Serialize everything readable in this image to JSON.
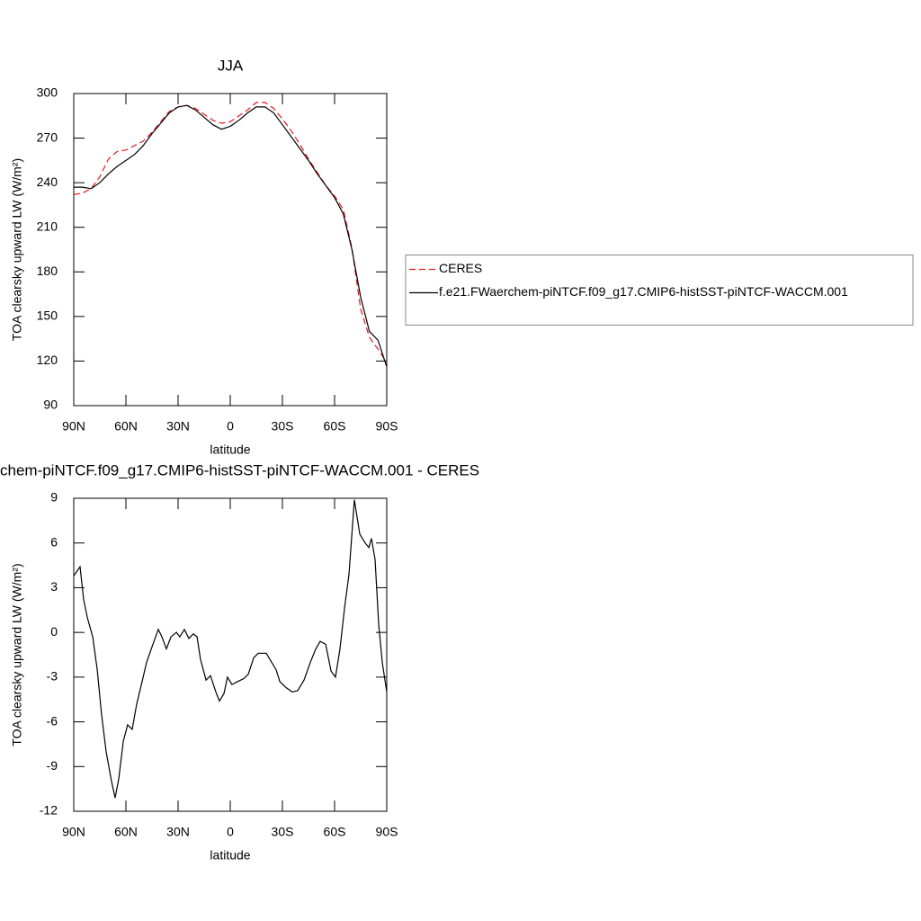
{
  "chart_data": [
    {
      "type": "line",
      "title": "JJA",
      "xlabel": "latitude",
      "ylabel": "TOA clearsky upward LW (W/m²)",
      "xlim": [
        90,
        -90
      ],
      "ylim": [
        90,
        300
      ],
      "xticks": [
        {
          "value": 90,
          "label": "90N"
        },
        {
          "value": 60,
          "label": "60N"
        },
        {
          "value": 30,
          "label": "30N"
        },
        0,
        {
          "value": -30,
          "label": "30S"
        },
        {
          "value": -60,
          "label": "60S"
        },
        {
          "value": -90,
          "label": "90S"
        }
      ],
      "yticks": [
        90,
        120,
        150,
        180,
        210,
        240,
        270,
        300
      ],
      "x": [
        90,
        85,
        80,
        75,
        70,
        65,
        60,
        55,
        50,
        45,
        40,
        35,
        30,
        25,
        20,
        15,
        10,
        5,
        0,
        -5,
        -10,
        -15,
        -20,
        -25,
        -30,
        -35,
        -40,
        -45,
        -50,
        -55,
        -60,
        -65,
        -70,
        -75,
        -80,
        -85,
        -90
      ],
      "legend": "right",
      "series": [
        {
          "name": "CERES",
          "color": "#e8161b",
          "dash": true,
          "values": [
            232,
            233,
            236,
            244,
            256,
            261,
            262,
            265,
            268,
            274,
            281,
            288,
            291,
            292,
            290,
            286,
            282,
            280,
            281,
            285,
            289,
            294,
            294,
            290,
            283,
            275,
            266,
            256,
            247,
            238,
            231,
            222,
            196,
            155,
            136,
            128,
            119
          ]
        },
        {
          "name": "f.e21.FWaerchem-piNTCF.f09_g17.CMIP6-histSST-piNTCF-WACCM.001",
          "color": "#000000",
          "dash": false,
          "values": [
            237,
            237,
            236,
            240,
            246,
            251,
            255,
            259,
            265,
            273,
            280,
            287,
            291,
            292,
            289,
            284,
            279,
            276,
            278,
            282,
            287,
            291,
            291,
            287,
            279,
            271,
            263,
            255,
            246,
            238,
            230,
            219,
            195,
            163,
            140,
            134,
            116
          ]
        }
      ]
    },
    {
      "type": "line",
      "title": "chem-piNTCF.f09_g17.CMIP6-histSST-piNTCF-WACCM.001 - CERES",
      "xlabel": "latitude",
      "ylabel": "TOA clearsky upward LW (W/m²)",
      "xlim": [
        90,
        -90
      ],
      "ylim": [
        -12,
        9
      ],
      "xticks": [
        {
          "value": 90,
          "label": "90N"
        },
        {
          "value": 60,
          "label": "60N"
        },
        {
          "value": 30,
          "label": "30N"
        },
        0,
        {
          "value": -30,
          "label": "30S"
        },
        {
          "value": -60,
          "label": "60S"
        },
        {
          "value": -90,
          "label": "90S"
        }
      ],
      "yticks": [
        -12,
        -9,
        -6,
        -3,
        0,
        3,
        6,
        9
      ],
      "x": [
        90,
        86.4,
        84.3,
        82.2,
        79.1,
        76.5,
        74,
        71.4,
        68.3,
        66.2,
        64.1,
        61.5,
        59,
        56.4,
        53.8,
        50.7,
        48.1,
        44.5,
        41.4,
        39.3,
        36.7,
        34.1,
        31,
        29,
        26.4,
        23.8,
        21.2,
        19.1,
        17.1,
        13.9,
        11.4,
        8.3,
        6.2,
        3.6,
        1.6,
        -1,
        -4.2,
        -7.8,
        -10.4,
        -13.5,
        -16.1,
        -20.7,
        -23.8,
        -26.4,
        -28.5,
        -32.1,
        -35.7,
        -38.8,
        -42.4,
        -46.1,
        -49.2,
        -51.7,
        -54.9,
        -58,
        -60.5,
        -63.1,
        -65.7,
        -68.3,
        -71.4,
        -74.5,
        -77.6,
        -79.7,
        -81.2,
        -83.3,
        -85.4,
        -87.4,
        -90
      ],
      "series": [
        {
          "color": "#000000",
          "dash": false,
          "values": [
            3.8,
            4.4,
            2.2,
            1,
            -0.3,
            -2.5,
            -5.5,
            -8,
            -10,
            -11.1,
            -9.8,
            -7.3,
            -6.2,
            -6.5,
            -4.8,
            -3.3,
            -2,
            -0.8,
            0.2,
            -0.3,
            -1.1,
            -0.3,
            0,
            -0.3,
            0.2,
            -0.4,
            -0.1,
            -0.3,
            -1.8,
            -3.2,
            -2.9,
            -4,
            -4.6,
            -4.1,
            -3,
            -3.5,
            -3.3,
            -3.1,
            -2.8,
            -1.7,
            -1.4,
            -1.4,
            -2,
            -2.5,
            -3.3,
            -3.7,
            -4,
            -3.9,
            -3.2,
            -2,
            -1.1,
            -0.6,
            -0.8,
            -2.6,
            -3,
            -1.1,
            1.6,
            3.9,
            8.9,
            6.6,
            6,
            5.7,
            6.3,
            4.9,
            0.5,
            -2,
            -4
          ]
        }
      ]
    }
  ]
}
